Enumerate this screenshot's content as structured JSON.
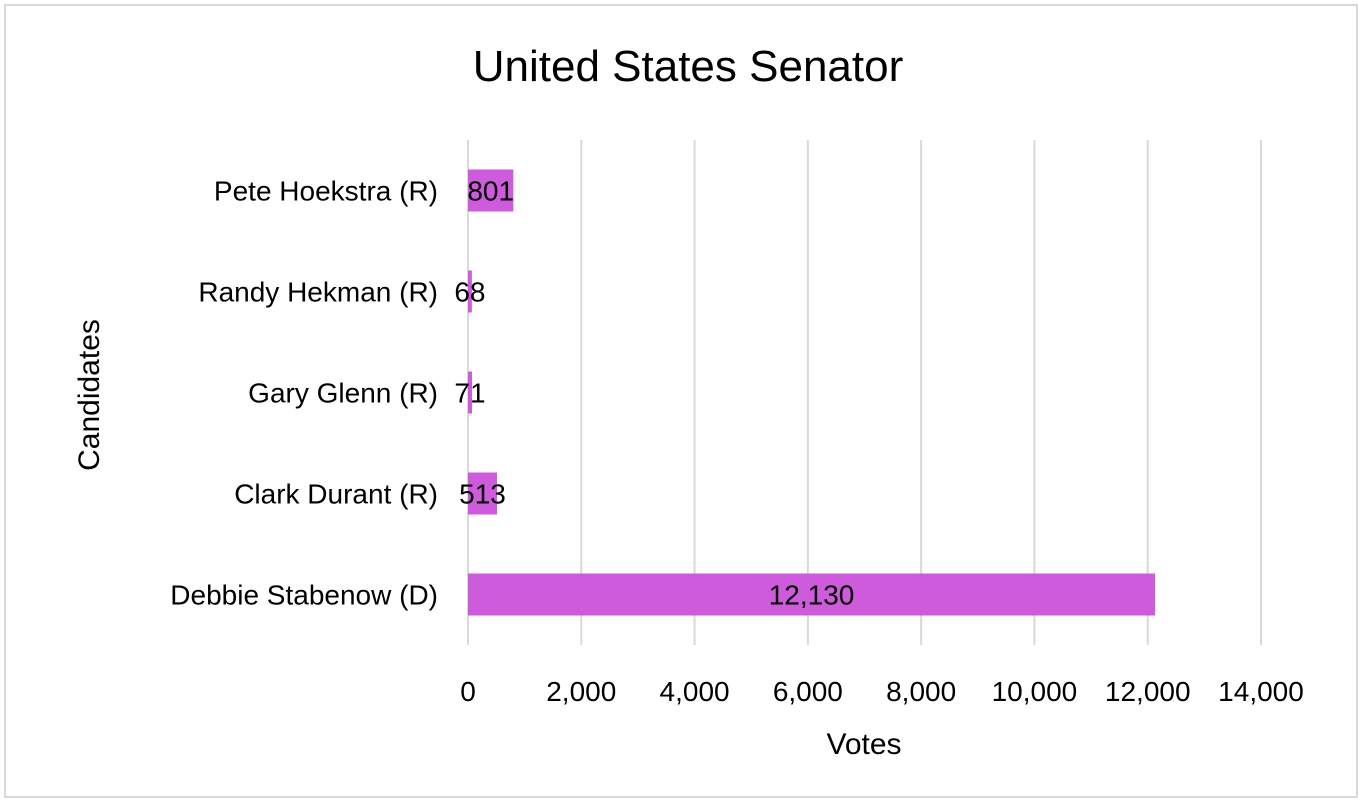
{
  "chart_data": {
    "type": "bar",
    "orientation": "horizontal",
    "title": "United States Senator",
    "xlabel": "Votes",
    "ylabel": "Candidates",
    "categories": [
      "Debbie Stabenow (D)",
      "Clark Durant (R)",
      "Gary Glenn (R)",
      "Randy Hekman (R)",
      "Pete Hoekstra (R)"
    ],
    "values": [
      12130,
      513,
      71,
      68,
      801
    ],
    "data_labels": [
      "12,130",
      "513",
      "71",
      "68",
      "801"
    ],
    "xlim": [
      0,
      14000
    ],
    "xticks": [
      0,
      2000,
      4000,
      6000,
      8000,
      10000,
      12000,
      14000
    ],
    "xtick_labels": [
      "0",
      "2,000",
      "4,000",
      "6,000",
      "8,000",
      "10,000",
      "12,000",
      "14,000"
    ],
    "grid": "vertical",
    "legend": "none",
    "bar_color": "#cd5bdb"
  }
}
